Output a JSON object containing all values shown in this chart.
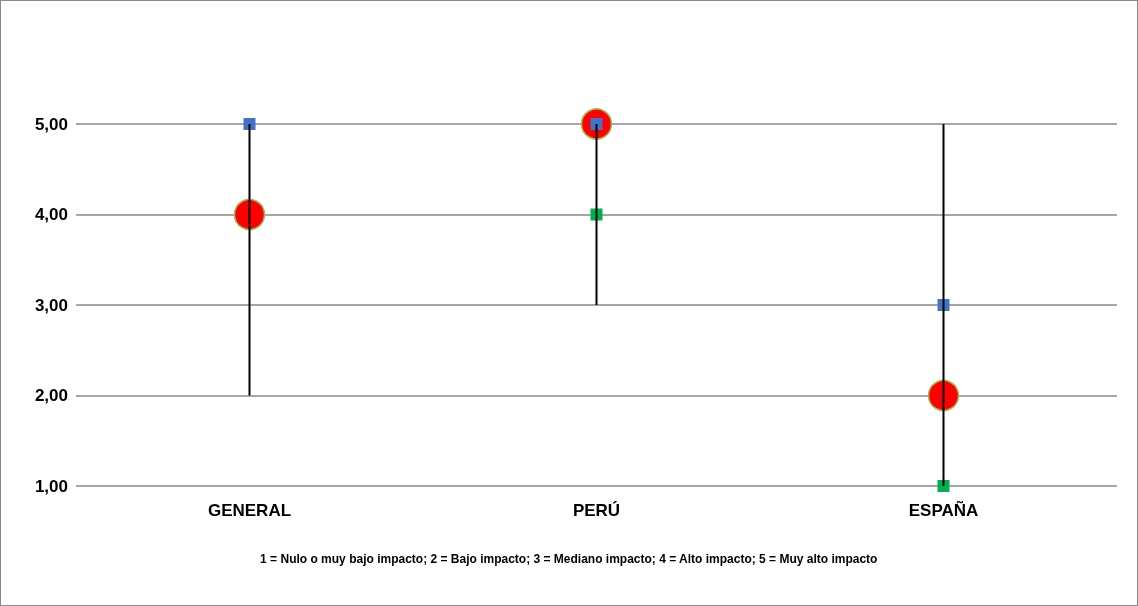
{
  "chart_data": {
    "type": "scatter",
    "categories": [
      "GENERAL",
      "PERÚ",
      "ESPAÑA"
    ],
    "series": [
      {
        "color": "#4472c4",
        "marker": "square",
        "values": [
          5,
          5,
          3
        ]
      },
      {
        "color": "#00b050",
        "marker": "square",
        "values": [
          null,
          4,
          1
        ]
      },
      {
        "color": "#ff0000",
        "marker": "circle",
        "values": [
          4,
          5,
          2
        ],
        "errors": [
          [
            2,
            5
          ],
          [
            3,
            5
          ],
          [
            1,
            5
          ]
        ]
      }
    ],
    "ylim": [
      1,
      5
    ],
    "yticks": [
      {
        "value": 1,
        "label": "1,00"
      },
      {
        "value": 2,
        "label": "2,00"
      },
      {
        "value": 3,
        "label": "3,00"
      },
      {
        "value": 4,
        "label": "4,00"
      },
      {
        "value": 5,
        "label": "5,00"
      }
    ],
    "grid": "y",
    "annotations": [
      "1 = Nulo o muy bajo impacto; 2 = Bajo impacto; 3 = Mediano impacto; 4 = Alto impacto; 5 = Muy alto impacto"
    ]
  }
}
